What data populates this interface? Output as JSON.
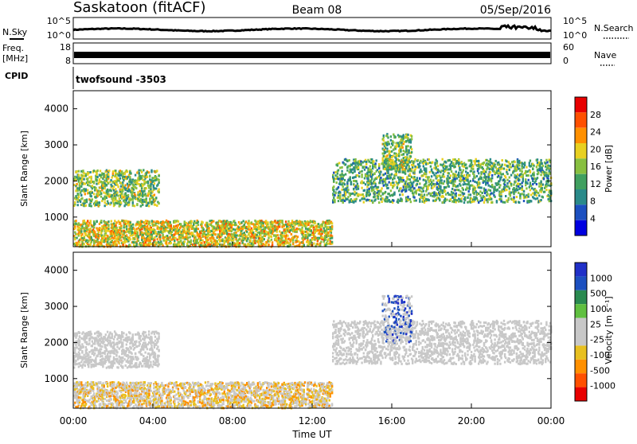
{
  "header": {
    "station": "Saskatoon (fitACF)",
    "beam": "Beam 08",
    "date": "05/Sep/2016"
  },
  "strips": {
    "nsky_label": "N.Sky",
    "nsky_ticks": [
      "10^5",
      "10^0"
    ],
    "nsearch_label": "N.Search",
    "nsearch_ticks": [
      "10^5",
      "10^0"
    ],
    "freq_label_1": "Freq.",
    "freq_label_2": "[MHz]",
    "freq_ticks": [
      "18",
      "8"
    ],
    "nave_label": "Nave",
    "nave_ticks": [
      "60",
      "0"
    ],
    "cpid_label": "CPID",
    "cpid_value": "twofsound -3503"
  },
  "colors": {
    "power_scale": [
      "#0000e0",
      "#1c50c0",
      "#2a8a8a",
      "#40a060",
      "#88c040",
      "#e8d020",
      "#ff9000",
      "#ff5000",
      "#e80000"
    ],
    "velocity_scale": [
      "#e80000",
      "#ff5000",
      "#ff9000",
      "#e8c020",
      "#c8c8c8",
      "#c8c8c8",
      "#60c040",
      "#2a8a50",
      "#1c50c0",
      "#2030c8"
    ],
    "ground_scatter": "#c8c8c8"
  },
  "chart_data": [
    {
      "type": "heatmap",
      "panel": "power",
      "ylabel": "Slant Range [km]",
      "yticks": [
        "4000",
        "3000",
        "2000",
        "1000"
      ],
      "ylim": [
        180,
        4500
      ],
      "xlim": [
        "00:00",
        "24:00"
      ],
      "colorbar_label": "Power [dB]",
      "colorbar_ticks": [
        "28",
        "24",
        "20",
        "16",
        "12",
        "8",
        "4"
      ],
      "colorbar_range": [
        0,
        30
      ],
      "scatter_regions": [
        {
          "t_start": 0.0,
          "t_end": 4.3,
          "range_km": [
            1300,
            2300
          ],
          "value": 14
        },
        {
          "t_start": 0.0,
          "t_end": 13.0,
          "range_km": [
            180,
            900
          ],
          "value": 18
        },
        {
          "t_start": 13.0,
          "t_end": 24.0,
          "range_km": [
            1400,
            2600
          ],
          "value": 12
        },
        {
          "t_start": 15.5,
          "t_end": 17.0,
          "range_km": [
            2300,
            3300
          ],
          "value": 14
        }
      ]
    },
    {
      "type": "heatmap",
      "panel": "velocity",
      "ylabel": "Slant Range [km]",
      "yticks": [
        "4000",
        "3000",
        "2000",
        "1000"
      ],
      "ylim": [
        180,
        4500
      ],
      "xlim": [
        "00:00",
        "24:00"
      ],
      "xticks": [
        "00:00",
        "04:00",
        "08:00",
        "12:00",
        "16:00",
        "20:00",
        "00:00"
      ],
      "xlabel": "Time UT",
      "colorbar_label": "Velocity [m s⁻¹]",
      "colorbar_ticks": [
        "1000",
        "500",
        "100",
        "25",
        "-25",
        "-100",
        "-500",
        "-1000"
      ],
      "scatter_regions": [
        {
          "t_start": 0.0,
          "t_end": 4.3,
          "range_km": [
            1300,
            2300
          ],
          "value": 0
        },
        {
          "t_start": 0.0,
          "t_end": 13.0,
          "range_km": [
            180,
            900
          ],
          "value": -150
        },
        {
          "t_start": 13.0,
          "t_end": 24.0,
          "range_km": [
            1400,
            2600
          ],
          "value": 0
        },
        {
          "t_start": 15.5,
          "t_end": 17.0,
          "range_km": [
            2000,
            3300
          ],
          "value": 400
        }
      ]
    }
  ]
}
